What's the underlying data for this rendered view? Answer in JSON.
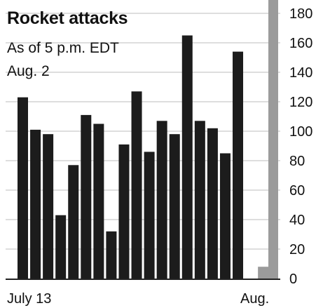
{
  "chart_data": {
    "type": "bar",
    "title": "Rocket attacks",
    "subtitle_line1": "As of 5 p.m. EDT",
    "subtitle_line2": "Aug. 2",
    "x_labels": {
      "start": "July 13",
      "end": "Aug."
    },
    "ylim": [
      0,
      180
    ],
    "y_ticks": [
      0,
      20,
      40,
      60,
      80,
      100,
      120,
      140,
      160,
      180
    ],
    "grid": true,
    "values": [
      123,
      101,
      98,
      43,
      77,
      111,
      105,
      32,
      91,
      127,
      86,
      107,
      98,
      165,
      107,
      102,
      85,
      154,
      null,
      8
    ],
    "colors": {
      "bar": "#1c1c1c",
      "highlight": "#9b9b9b",
      "grid": "#bdbdbd"
    }
  }
}
